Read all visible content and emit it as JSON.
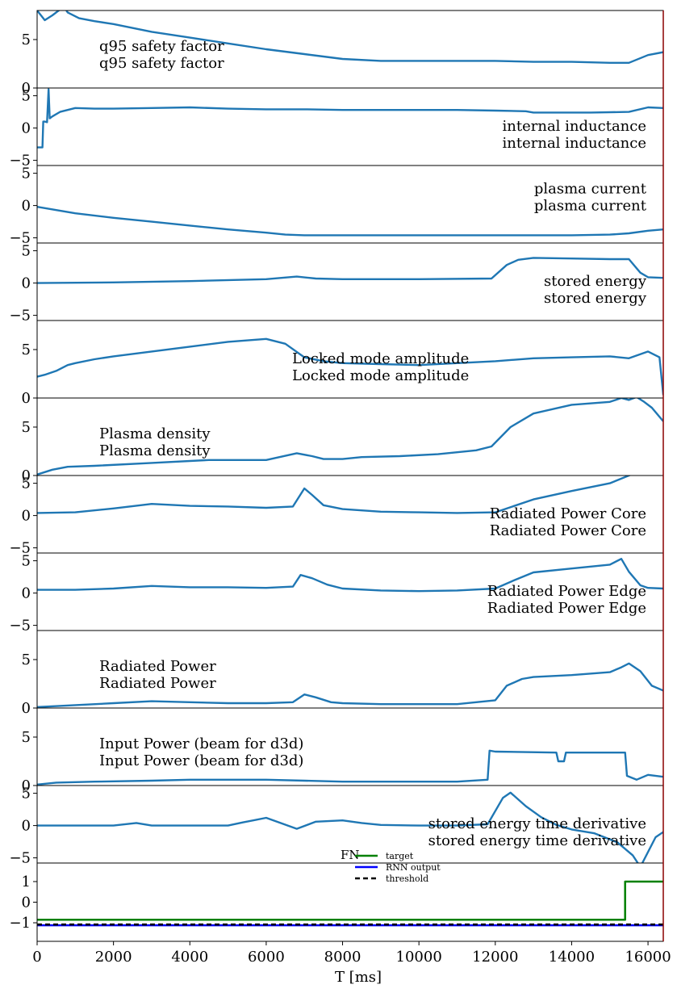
{
  "chart_data": [
    {
      "type": "line",
      "title": "q95 safety factor",
      "title_line2": "q95 safety factor",
      "title_pos": "upper-left",
      "yticks": [
        0,
        5
      ],
      "ylim": [
        0,
        8
      ],
      "series": [
        {
          "x": [
            0,
            200,
            400,
            700,
            800,
            1100,
            1500,
            2000,
            3000,
            4000,
            5000,
            6000,
            7000,
            8000,
            9000,
            10000,
            11000,
            12000,
            13000,
            14000,
            15000,
            15500,
            16000,
            16400
          ],
          "y": [
            8.0,
            7.0,
            7.5,
            8.4,
            7.8,
            7.2,
            6.9,
            6.6,
            5.8,
            5.2,
            4.6,
            4.0,
            3.5,
            3.0,
            2.8,
            2.8,
            2.8,
            2.8,
            2.7,
            2.7,
            2.6,
            2.6,
            3.4,
            3.7
          ]
        }
      ]
    },
    {
      "type": "line",
      "title": "internal inductance",
      "title_line2": "internal inductance",
      "title_pos": "right",
      "yticks": [
        -5,
        0,
        5
      ],
      "ylim": [
        -5.8,
        6.2
      ],
      "series": [
        {
          "x": [
            0,
            140,
            160,
            200,
            260,
            300,
            330,
            400,
            600,
            1000,
            1500,
            2000,
            3000,
            4000,
            5000,
            6000,
            7000,
            8000,
            9000,
            10000,
            11000,
            12000,
            12800,
            13000,
            14500,
            15500,
            16000,
            16400
          ],
          "y": [
            -3,
            -3,
            1,
            1,
            0.9,
            6,
            1.5,
            1.8,
            2.5,
            3.1,
            3.0,
            3.0,
            3.1,
            3.2,
            3.0,
            2.9,
            2.9,
            2.8,
            2.8,
            2.8,
            2.8,
            2.7,
            2.6,
            2.4,
            2.4,
            2.5,
            3.2,
            3.1
          ]
        }
      ]
    },
    {
      "type": "line",
      "title": "plasma current",
      "title_line2": "plasma current",
      "title_pos": "right",
      "yticks": [
        -5,
        0,
        5
      ],
      "ylim": [
        -5.8,
        6.2
      ],
      "series": [
        {
          "x": [
            0,
            500,
            1000,
            2000,
            3000,
            4000,
            5000,
            6000,
            6500,
            7000,
            8000,
            10000,
            12000,
            14000,
            15000,
            15500,
            16000,
            16400
          ],
          "y": [
            -0.2,
            -0.7,
            -1.2,
            -1.9,
            -2.5,
            -3.1,
            -3.7,
            -4.2,
            -4.5,
            -4.6,
            -4.6,
            -4.6,
            -4.6,
            -4.6,
            -4.5,
            -4.3,
            -3.9,
            -3.7
          ]
        }
      ]
    },
    {
      "type": "line",
      "title": "stored energy",
      "title_line2": "stored energy",
      "title_pos": "right",
      "yticks": [
        -5,
        0,
        5
      ],
      "ylim": [
        -5.8,
        6.2
      ],
      "series": [
        {
          "x": [
            0,
            2000,
            4000,
            6000,
            6800,
            7300,
            8000,
            10000,
            11900,
            12300,
            12600,
            13000,
            14000,
            15000,
            15500,
            15800,
            16000,
            16400
          ],
          "y": [
            0.0,
            0.1,
            0.3,
            0.6,
            1.0,
            0.7,
            0.6,
            0.6,
            0.7,
            2.8,
            3.6,
            3.9,
            3.8,
            3.7,
            3.7,
            1.6,
            0.9,
            0.8
          ]
        }
      ]
    },
    {
      "type": "line",
      "title": "Locked mode amplitude",
      "title_line2": "Locked mode amplitude",
      "title_pos": "center",
      "yticks": [
        0,
        5
      ],
      "ylim": [
        0,
        8
      ],
      "series": [
        {
          "x": [
            0,
            200,
            500,
            800,
            1000,
            1500,
            2000,
            3000,
            4000,
            5000,
            6000,
            6500,
            7000,
            7500,
            8000,
            9000,
            10000,
            11000,
            12000,
            13000,
            14000,
            15000,
            15500,
            16000,
            16300,
            16400
          ],
          "y": [
            2.2,
            2.4,
            2.8,
            3.4,
            3.6,
            4.0,
            4.3,
            4.8,
            5.3,
            5.8,
            6.1,
            5.6,
            4.2,
            3.8,
            3.6,
            3.5,
            3.4,
            3.6,
            3.8,
            4.1,
            4.2,
            4.3,
            4.1,
            4.8,
            4.2,
            0.3
          ]
        }
      ]
    },
    {
      "type": "line",
      "title": "Plasma density",
      "title_line2": "Plasma density",
      "title_pos": "upper-left",
      "yticks": [
        0,
        5
      ],
      "ylim": [
        0,
        8
      ],
      "series": [
        {
          "x": [
            0,
            400,
            800,
            1500,
            3000,
            4500,
            6000,
            6800,
            7200,
            7500,
            8000,
            8500,
            9500,
            10500,
            11500,
            11900,
            12400,
            13000,
            14000,
            15000,
            15300,
            15500,
            15700,
            15900,
            16100,
            16400
          ],
          "y": [
            0.1,
            0.6,
            0.9,
            1.0,
            1.3,
            1.6,
            1.6,
            2.3,
            2.0,
            1.7,
            1.7,
            1.9,
            2.0,
            2.2,
            2.6,
            3.0,
            5.0,
            6.4,
            7.3,
            7.6,
            8.0,
            7.8,
            8.1,
            7.6,
            7.0,
            5.6
          ]
        }
      ]
    },
    {
      "type": "line",
      "title": "Radiated Power Core",
      "title_line2": "Radiated Power Core",
      "title_pos": "right",
      "yticks": [
        -5,
        0,
        5
      ],
      "ylim": [
        -5.8,
        6.2
      ],
      "series": [
        {
          "x": [
            0,
            1000,
            2000,
            3000,
            4000,
            5000,
            6000,
            6700,
            7000,
            7200,
            7500,
            8000,
            9000,
            10000,
            11000,
            12000,
            12400,
            13000,
            14000,
            15000,
            15500,
            16000,
            16400
          ],
          "y": [
            0.4,
            0.5,
            1.1,
            1.8,
            1.5,
            1.4,
            1.2,
            1.4,
            4.2,
            3.2,
            1.6,
            1.0,
            0.6,
            0.5,
            0.4,
            0.5,
            1.3,
            2.5,
            3.8,
            5.0,
            6.2,
            7.5,
            8.0
          ]
        }
      ]
    },
    {
      "type": "line",
      "title": "Radiated Power Edge",
      "title_line2": "Radiated Power Edge",
      "title_pos": "right",
      "yticks": [
        -5,
        0,
        5
      ],
      "ylim": [
        -5.8,
        6.2
      ],
      "series": [
        {
          "x": [
            0,
            1000,
            2000,
            3000,
            4000,
            5000,
            6000,
            6700,
            6900,
            7200,
            7600,
            8000,
            9000,
            10000,
            11000,
            12000,
            12500,
            13000,
            14000,
            15000,
            15300,
            15500,
            15800,
            16000,
            16400
          ],
          "y": [
            0.5,
            0.5,
            0.7,
            1.1,
            0.9,
            0.9,
            0.8,
            1.0,
            2.8,
            2.3,
            1.3,
            0.7,
            0.4,
            0.3,
            0.4,
            0.7,
            2.0,
            3.2,
            3.8,
            4.4,
            5.3,
            3.3,
            1.2,
            0.8,
            0.7
          ]
        }
      ]
    },
    {
      "type": "line",
      "title": "Radiated Power",
      "title_line2": "Radiated Power",
      "title_pos": "upper-left",
      "yticks": [
        0,
        5
      ],
      "ylim": [
        0,
        8
      ],
      "series": [
        {
          "x": [
            0,
            1000,
            2000,
            3000,
            4000,
            5000,
            6000,
            6700,
            7000,
            7300,
            7700,
            8000,
            9000,
            10000,
            11000,
            12000,
            12300,
            12700,
            13000,
            14000,
            15000,
            15300,
            15500,
            15800,
            16100,
            16400
          ],
          "y": [
            0.1,
            0.3,
            0.5,
            0.7,
            0.6,
            0.5,
            0.5,
            0.6,
            1.4,
            1.1,
            0.6,
            0.5,
            0.4,
            0.4,
            0.4,
            0.8,
            2.3,
            3.0,
            3.2,
            3.4,
            3.7,
            4.2,
            4.6,
            3.8,
            2.3,
            1.8
          ]
        }
      ]
    },
    {
      "type": "line",
      "title": "Input Power (beam for d3d)",
      "title_line2": "Input Power (beam for d3d)",
      "title_pos": "upper-left",
      "yticks": [
        0,
        5
      ],
      "ylim": [
        0,
        8
      ],
      "series": [
        {
          "x": [
            0,
            500,
            1500,
            3000,
            4000,
            5000,
            6000,
            7000,
            8000,
            9000,
            10000,
            11000,
            11800,
            11850,
            12000,
            13600,
            13650,
            13800,
            13850,
            15400,
            15450,
            15700,
            16000,
            16400
          ],
          "y": [
            0.1,
            0.3,
            0.4,
            0.5,
            0.6,
            0.6,
            0.6,
            0.5,
            0.4,
            0.4,
            0.4,
            0.4,
            0.6,
            3.6,
            3.5,
            3.4,
            2.5,
            2.5,
            3.4,
            3.4,
            1.0,
            0.6,
            1.1,
            0.9
          ]
        }
      ]
    },
    {
      "type": "line",
      "title": "stored energy time derivative",
      "title_line2": "stored energy time derivative",
      "title_pos": "right",
      "yticks": [
        -5,
        0,
        5
      ],
      "ylim": [
        -5.8,
        6.2
      ],
      "series": [
        {
          "x": [
            0,
            1000,
            2000,
            2600,
            3000,
            3800,
            4200,
            5000,
            5400,
            6000,
            6800,
            7300,
            8000,
            8500,
            9000,
            10000,
            11000,
            11800,
            12200,
            12400,
            12800,
            13200,
            13600,
            14000,
            14600,
            15200,
            15600,
            15800,
            16200,
            16400
          ],
          "y": [
            0,
            0,
            0,
            0.4,
            0,
            0,
            0,
            0,
            0.5,
            1.2,
            -0.5,
            0.6,
            0.8,
            0.4,
            0.1,
            0,
            0,
            0.2,
            4.3,
            5.1,
            3.0,
            1.3,
            0.1,
            -0.6,
            -1.2,
            -2.6,
            -4.6,
            -6.4,
            -1.8,
            -1.0
          ]
        }
      ]
    },
    {
      "type": "line",
      "title": "",
      "yticks": [
        -1,
        0,
        1
      ],
      "ylim": [
        -1.9,
        1.9
      ],
      "xlabel": "T [ms]",
      "xticks": [
        0,
        2000,
        4000,
        6000,
        8000,
        10000,
        12000,
        14000,
        16000
      ],
      "xlim": [
        0,
        16400
      ],
      "legend": {
        "title": "FN",
        "position": "top-center"
      },
      "series": [
        {
          "name": "target",
          "color": "#008000",
          "style": "solid",
          "x": [
            0,
            15400,
            15400,
            16400
          ],
          "y": [
            -0.85,
            -0.85,
            1.0,
            1.0
          ]
        },
        {
          "name": "RNN output",
          "color": "#0000ff",
          "style": "solid",
          "x": [
            0,
            16400
          ],
          "y": [
            -1.12,
            -1.12
          ]
        },
        {
          "name": "threshold",
          "color": "#000000",
          "style": "dashed",
          "x": [
            0,
            16400
          ],
          "y": [
            -1.08,
            -1.08
          ]
        }
      ]
    }
  ],
  "colors": {
    "series": "#1f77b4",
    "marker_line": "#8b0000"
  },
  "marker_line_x": 16400
}
